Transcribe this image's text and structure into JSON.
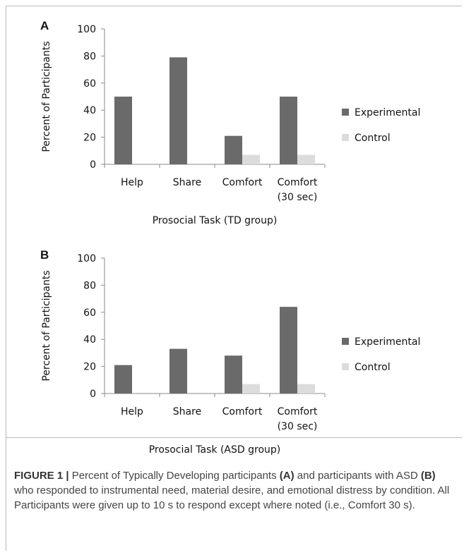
{
  "chart_data": [
    {
      "type": "bar",
      "panel_label": "A",
      "categories": [
        "Help",
        "Share",
        "Comfort",
        "Comfort (30 sec)"
      ],
      "category_lines": [
        [
          "Help"
        ],
        [
          "Share"
        ],
        [
          "Comfort"
        ],
        [
          "Comfort",
          "(30 sec)"
        ]
      ],
      "series": [
        {
          "name": "Experimental",
          "color": "#6a6a6a",
          "values": [
            50,
            79,
            21,
            50
          ]
        },
        {
          "name": "Control",
          "color": "#dcdcdc",
          "values": [
            0,
            0,
            7,
            7
          ]
        }
      ],
      "xlabel": "Prosocial Task (TD group)",
      "ylabel": "Percent of Participants",
      "ylim": [
        0,
        100
      ],
      "yticks": [
        0,
        20,
        40,
        60,
        80,
        100
      ],
      "grid": false,
      "legend_position": "right"
    },
    {
      "type": "bar",
      "panel_label": "B",
      "categories": [
        "Help",
        "Share",
        "Comfort",
        "Comfort (30 sec)"
      ],
      "category_lines": [
        [
          "Help"
        ],
        [
          "Share"
        ],
        [
          "Comfort"
        ],
        [
          "Comfort",
          "(30 sec)"
        ]
      ],
      "series": [
        {
          "name": "Experimental",
          "color": "#6a6a6a",
          "values": [
            21,
            33,
            28,
            64
          ]
        },
        {
          "name": "Control",
          "color": "#dcdcdc",
          "values": [
            0,
            0,
            7,
            7
          ]
        }
      ],
      "xlabel": "Prosocial Task (ASD group)",
      "ylabel": "Percent of Participants",
      "ylim": [
        0,
        100
      ],
      "yticks": [
        0,
        20,
        40,
        60,
        80,
        100
      ],
      "grid": false,
      "legend_position": "right"
    }
  ],
  "caption": {
    "figure_label": "FIGURE 1 |",
    "part1": " Percent of Typically Developing participants ",
    "ref_a": "(A)",
    "part2": " and participants with ASD ",
    "ref_b": "(B)",
    "part3": " who responded to instrumental need, material desire, and emotional distress by condition. All Participants were given up to 10 s to respond except where noted (i.e., Comfort 30 s)."
  }
}
